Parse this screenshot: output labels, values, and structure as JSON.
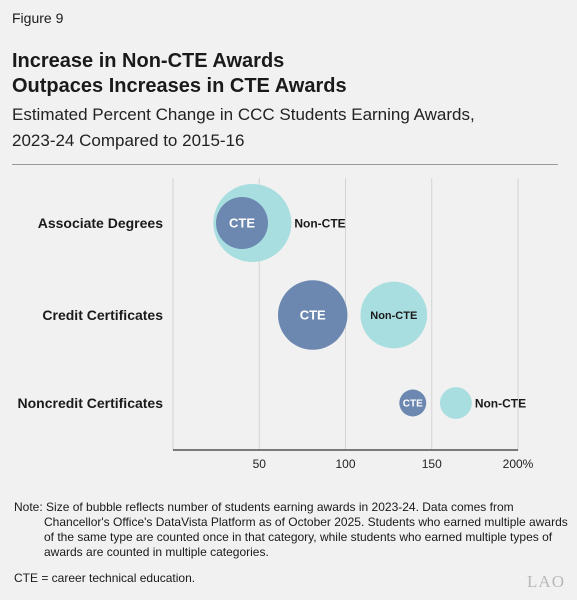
{
  "figure_label": "Figure 9",
  "title_lines": [
    "Increase in Non-CTE Awards",
    "Outpaces Increases in CTE Awards"
  ],
  "subtitle_lines": [
    "Estimated Percent Change in CCC Students Earning Awards,",
    "2023-24 Compared to 2015-16"
  ],
  "note": {
    "prefix": "Note:",
    "text_first": "Size of bubble reflects number of students earning awards in 2023-24. Data comes from",
    "text_rest": "Chancellor's Office's DataVista Platform as of October 2025. Students who earned multiple awards of the same type are counted once in that category, while students who earned multiple types of awards are counted in multiple categories."
  },
  "cte_definition": "CTE = career technical education.",
  "logo": "LAO",
  "colors": {
    "cte": "#6c88b0",
    "non_cte": "#a9dee0",
    "axis": "#333333",
    "grid": "#d4d4d4"
  },
  "chart_data": {
    "type": "scatter",
    "categories": [
      "Associate Degrees",
      "Credit Certificates",
      "Noncredit Certificates"
    ],
    "x_ticks": [
      "50",
      "100",
      "150",
      "200%"
    ],
    "x_tick_values": [
      50,
      100,
      150,
      200
    ],
    "xlim": [
      0,
      200
    ],
    "grid": true,
    "series": [
      {
        "name": "CTE",
        "color": "#6c88b0",
        "x": [
          40,
          81,
          139
        ],
        "size": [
          0.56,
          1.0,
          0.15
        ]
      },
      {
        "name": "Non-CTE",
        "color": "#a9dee0",
        "x": [
          46,
          128,
          164
        ],
        "size": [
          1.26,
          0.92,
          0.21
        ]
      }
    ],
    "point_labels": [
      {
        "text": "CTE",
        "series": 0,
        "category": 0,
        "position": "inside"
      },
      {
        "text": "Non-CTE",
        "series": 1,
        "category": 0,
        "position": "right"
      },
      {
        "text": "CTE",
        "series": 0,
        "category": 1,
        "position": "inside"
      },
      {
        "text": "Non-CTE",
        "series": 1,
        "category": 1,
        "position": "inside"
      },
      {
        "text": "CTE",
        "series": 0,
        "category": 2,
        "position": "inside"
      },
      {
        "text": "Non-CTE",
        "series": 1,
        "category": 2,
        "position": "right"
      }
    ]
  }
}
